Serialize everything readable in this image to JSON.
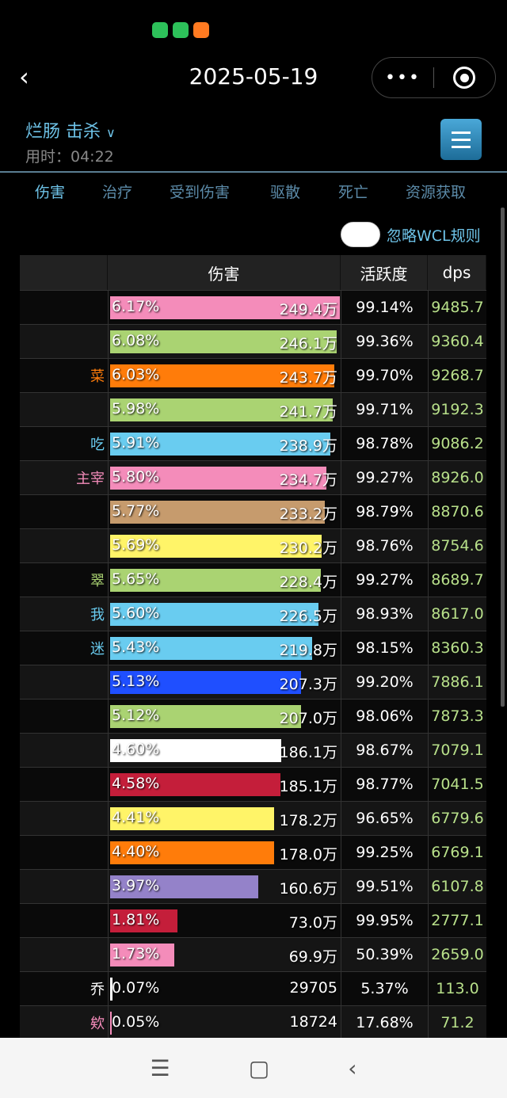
{
  "status_icons": [
    {
      "name": "wechat-icon",
      "color": "#2dc15a"
    },
    {
      "name": "phone-icon",
      "color": "#2dc15a"
    },
    {
      "name": "app-icon",
      "color": "#ff7a21"
    }
  ],
  "nav": {
    "title": "2025-05-19",
    "more": "•••"
  },
  "encounter": {
    "boss": "烂肠 击杀",
    "duration": "用时：04:22"
  },
  "tabs": [
    "伤害",
    "治疗",
    "受到伤害",
    "驱散",
    "死亡",
    "资源获取"
  ],
  "toggle": {
    "label": "忽略WCL规则",
    "on": false
  },
  "table": {
    "headers": [
      "",
      "伤害",
      "活跃度",
      "dps"
    ],
    "rows": [
      {
        "name": "",
        "pct": "6.17%",
        "amount": "249.4万",
        "active": "99.14%",
        "dps": "9485.7",
        "color": "#f48cba",
        "share": 6.17
      },
      {
        "name": "",
        "pct": "6.08%",
        "amount": "246.1万",
        "active": "99.36%",
        "dps": "9360.4",
        "color": "#aad372",
        "share": 6.08
      },
      {
        "name": "菜",
        "pct": "6.03%",
        "amount": "243.7万",
        "active": "99.70%",
        "dps": "9268.7",
        "color": "#ff7c0a",
        "share": 6.03
      },
      {
        "name": "",
        "pct": "5.98%",
        "amount": "241.7万",
        "active": "99.71%",
        "dps": "9192.3",
        "color": "#aad372",
        "share": 5.98
      },
      {
        "name": "吃",
        "pct": "5.91%",
        "amount": "238.9万",
        "active": "98.78%",
        "dps": "9086.2",
        "color": "#69ccf0",
        "share": 5.91
      },
      {
        "name": "主宰",
        "pct": "5.80%",
        "amount": "234.7万",
        "active": "99.27%",
        "dps": "8926.0",
        "color": "#f48cba",
        "share": 5.8
      },
      {
        "name": "",
        "pct": "5.77%",
        "amount": "233.2万",
        "active": "98.79%",
        "dps": "8870.6",
        "color": "#c69b6d",
        "share": 5.77
      },
      {
        "name": "",
        "pct": "5.69%",
        "amount": "230.2万",
        "active": "98.76%",
        "dps": "8754.6",
        "color": "#fff468",
        "share": 5.69
      },
      {
        "name": "翠",
        "pct": "5.65%",
        "amount": "228.4万",
        "active": "99.27%",
        "dps": "8689.7",
        "color": "#aad372",
        "share": 5.65
      },
      {
        "name": "我",
        "pct": "5.60%",
        "amount": "226.5万",
        "active": "98.93%",
        "dps": "8617.0",
        "color": "#69ccf0",
        "share": 5.6
      },
      {
        "name": "迷",
        "pct": "5.43%",
        "amount": "219.8万",
        "active": "98.15%",
        "dps": "8360.3",
        "color": "#69ccf0",
        "share": 5.43
      },
      {
        "name": "",
        "pct": "5.13%",
        "amount": "207.3万",
        "active": "99.20%",
        "dps": "7886.1",
        "color": "#1f4fff",
        "share": 5.13
      },
      {
        "name": "",
        "pct": "5.12%",
        "amount": "207.0万",
        "active": "98.06%",
        "dps": "7873.3",
        "color": "#aad372",
        "share": 5.12
      },
      {
        "name": "",
        "pct": "4.60%",
        "amount": "186.1万",
        "active": "98.67%",
        "dps": "7079.1",
        "color": "#ffffff",
        "share": 4.6
      },
      {
        "name": "",
        "pct": "4.58%",
        "amount": "185.1万",
        "active": "98.77%",
        "dps": "7041.5",
        "color": "#c41e3a",
        "share": 4.58
      },
      {
        "name": "",
        "pct": "4.41%",
        "amount": "178.2万",
        "active": "96.65%",
        "dps": "6779.6",
        "color": "#fff468",
        "share": 4.41
      },
      {
        "name": "",
        "pct": "4.40%",
        "amount": "178.0万",
        "active": "99.25%",
        "dps": "6769.1",
        "color": "#ff7c0a",
        "share": 4.4
      },
      {
        "name": "",
        "pct": "3.97%",
        "amount": "160.6万",
        "active": "99.51%",
        "dps": "6107.8",
        "color": "#9482c9",
        "share": 3.97
      },
      {
        "name": "",
        "pct": "1.81%",
        "amount": "73.0万",
        "active": "99.95%",
        "dps": "2777.1",
        "color": "#c41e3a",
        "share": 1.81
      },
      {
        "name": "",
        "pct": "1.73%",
        "amount": "69.9万",
        "active": "50.39%",
        "dps": "2659.0",
        "color": "#f48cba",
        "share": 1.73
      },
      {
        "name": "乔",
        "pct": "0.07%",
        "amount": "29705",
        "active": "5.37%",
        "dps": "113.0",
        "color": "#ffffff",
        "share": 0.07
      },
      {
        "name": "欸",
        "pct": "0.05%",
        "amount": "18724",
        "active": "17.68%",
        "dps": "71.2",
        "color": "#f48cba",
        "share": 0.05
      }
    ]
  },
  "system_nav": {
    "menu": "☰",
    "home": "▢",
    "back": "‹"
  }
}
